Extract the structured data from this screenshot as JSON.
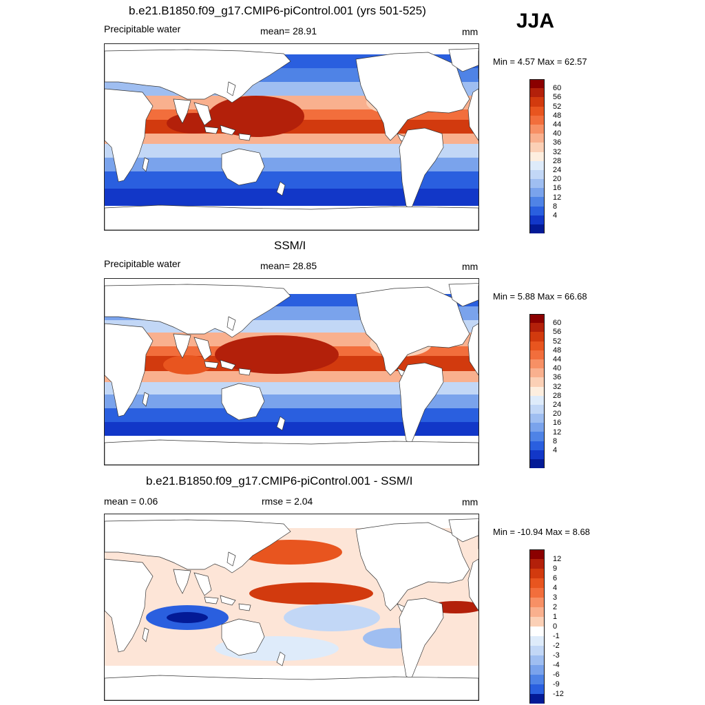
{
  "season": "JJA",
  "panels": [
    {
      "title": "b.e21.B1850.f09_g17.CMIP6-piControl.001 (yrs 501-525)",
      "left": "Precipitable water",
      "center": "mean=  28.91",
      "right": "mm",
      "minmax": "Min =   4.57 Max =  62.57"
    },
    {
      "title": "SSM/I",
      "left": "Precipitable water",
      "center": "mean=  28.85",
      "right": "mm",
      "minmax": "Min =   5.88 Max =  66.68"
    },
    {
      "title": "b.e21.B1850.f09_g17.CMIP6-piControl.001 - SSM/I",
      "left": "mean =   0.06",
      "center": "rmse =   2.04",
      "right": "mm",
      "minmax": "Min = -10.94 Max =   8.68"
    }
  ],
  "colorbars": {
    "absolute": {
      "labels": [
        "60",
        "56",
        "52",
        "48",
        "44",
        "40",
        "36",
        "32",
        "28",
        "24",
        "20",
        "16",
        "12",
        "8",
        "4"
      ],
      "colors": [
        "#8b0000",
        "#b3200a",
        "#d23a0e",
        "#e8551f",
        "#f26e3c",
        "#f79065",
        "#f9b08e",
        "#fbd0b6",
        "#fdeedf",
        "#deebfa",
        "#c2d7f6",
        "#9fbef1",
        "#7aa3ec",
        "#4f83e6",
        "#2a5fdf",
        "#1237c8",
        "#031a96"
      ]
    },
    "difference": {
      "labels": [
        "12",
        "9",
        "6",
        "4",
        "3",
        "2",
        "1",
        "0",
        "-1",
        "-2",
        "-3",
        "-4",
        "-6",
        "-9",
        "-12"
      ],
      "colors": [
        "#8b0000",
        "#b3200a",
        "#d23a0e",
        "#e8551f",
        "#f26e3c",
        "#f79065",
        "#f9b08e",
        "#fbd0b6",
        "#ffffff",
        "#deebfa",
        "#c2d7f6",
        "#9fbef1",
        "#7aa3ec",
        "#4f83e6",
        "#2a5fdf",
        "#031a96"
      ]
    }
  }
}
